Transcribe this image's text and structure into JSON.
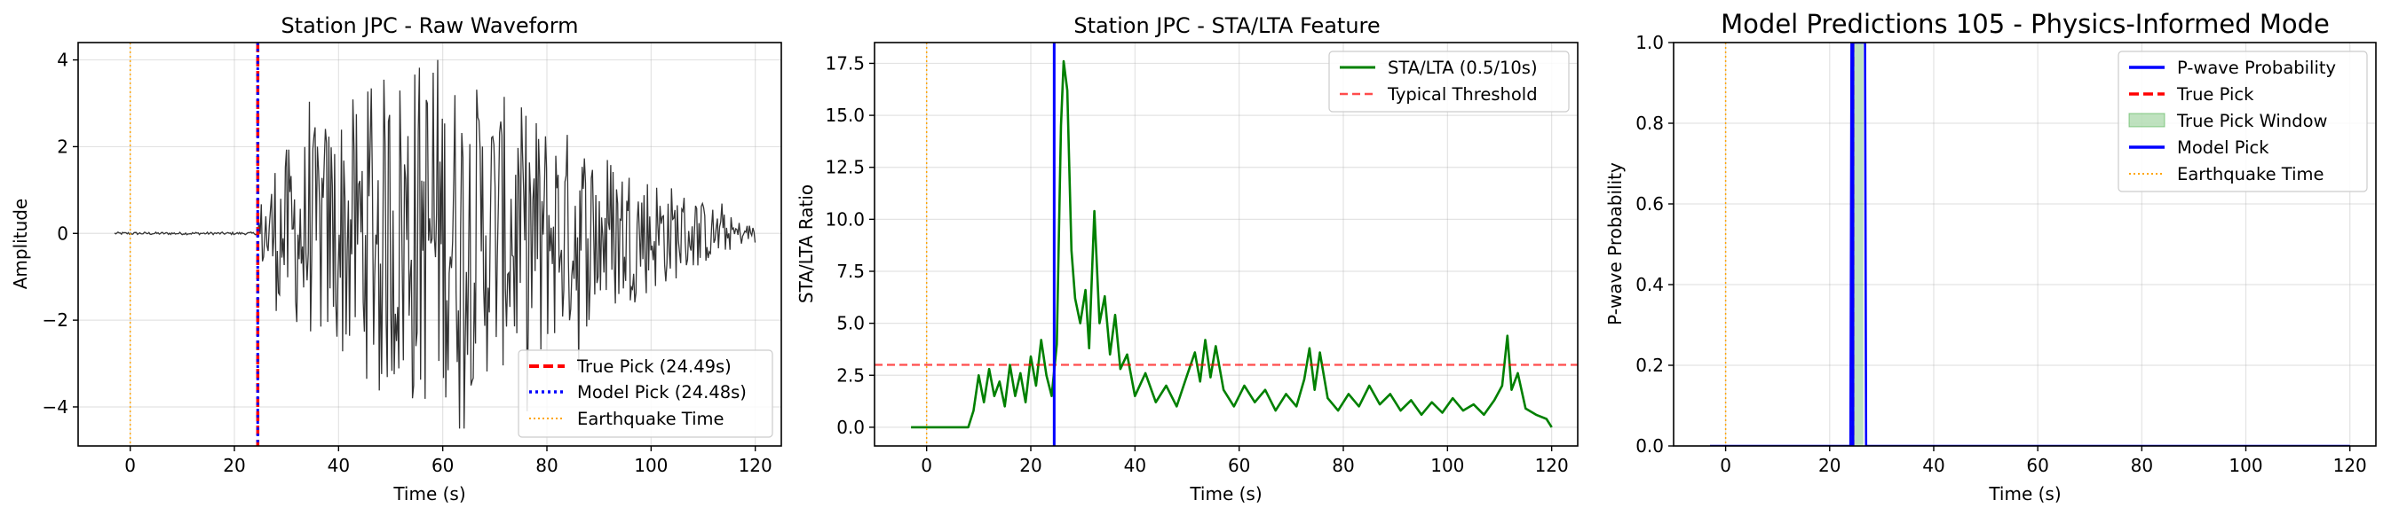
{
  "chart_data": [
    {
      "type": "line",
      "title": "Station JPC - Raw Waveform",
      "xlabel": "Time (s)",
      "ylabel": "Amplitude",
      "xlim": [
        -10,
        125
      ],
      "ylim": [
        -4.9,
        4.4
      ],
      "xticks": [
        "0",
        "20",
        "40",
        "60",
        "80",
        "100",
        "120"
      ],
      "xtick_values": [
        0,
        20,
        40,
        60,
        80,
        100,
        120
      ],
      "yticks": [
        "−4",
        "−2",
        "0",
        "2",
        "4"
      ],
      "ytick_values": [
        -4,
        -2,
        0,
        2,
        4
      ],
      "grid": true,
      "legend_position": "lower-right",
      "waveform": {
        "start": -3,
        "end": 120,
        "pick_time": 24.48,
        "pre_amplitude": 0.03,
        "peak_amplitude": 4.0,
        "min_amplitude": -4.5,
        "color": "#333333"
      },
      "vlines": [
        {
          "name": "True Pick (24.49s)",
          "x": 24.49,
          "color": "#ff0000",
          "style": "dashed",
          "width": 3.5
        },
        {
          "name": "Model Pick (24.48s)",
          "x": 24.48,
          "color": "#0000ff",
          "style": "dotted",
          "width": 3
        },
        {
          "name": "Earthquake Time",
          "x": 0,
          "color": "#ffa500",
          "style": "dotted",
          "width": 1.5
        }
      ],
      "legend": [
        "True Pick (24.49s)",
        "Model Pick (24.48s)",
        "Earthquake Time"
      ]
    },
    {
      "type": "line",
      "title": "Station JPC - STA/LTA Feature",
      "xlabel": "Time (s)",
      "ylabel": "STA/LTA Ratio",
      "xlim": [
        -10,
        125
      ],
      "ylim": [
        -0.9,
        18.5
      ],
      "xticks": [
        "0",
        "20",
        "40",
        "60",
        "80",
        "100",
        "120"
      ],
      "xtick_values": [
        0,
        20,
        40,
        60,
        80,
        100,
        120
      ],
      "yticks": [
        "0.0",
        "2.5",
        "5.0",
        "7.5",
        "10.0",
        "12.5",
        "15.0",
        "17.5"
      ],
      "ytick_values": [
        0,
        2.5,
        5,
        7.5,
        10,
        12.5,
        15,
        17.5
      ],
      "grid": true,
      "legend_position": "top-right",
      "series": [
        {
          "name": "STA/LTA (0.5/10s)",
          "color": "#008000",
          "keypoints": [
            [
              -3,
              0
            ],
            [
              8,
              0
            ],
            [
              9,
              0.8
            ],
            [
              10,
              2.5
            ],
            [
              11,
              1.2
            ],
            [
              12,
              2.8
            ],
            [
              13,
              1.5
            ],
            [
              14,
              2.2
            ],
            [
              15,
              1.0
            ],
            [
              16,
              3.0
            ],
            [
              17,
              1.5
            ],
            [
              18,
              2.6
            ],
            [
              19,
              1.2
            ],
            [
              20,
              3.4
            ],
            [
              21,
              2.0
            ],
            [
              22,
              4.2
            ],
            [
              23,
              2.5
            ],
            [
              24,
              1.5
            ],
            [
              25,
              4.0
            ],
            [
              25.8,
              14.5
            ],
            [
              26.3,
              17.6
            ],
            [
              27,
              16.2
            ],
            [
              27.8,
              8.5
            ],
            [
              28.5,
              6.2
            ],
            [
              29.5,
              5.0
            ],
            [
              30.5,
              6.6
            ],
            [
              31.2,
              3.8
            ],
            [
              32.2,
              10.4
            ],
            [
              33.2,
              5.0
            ],
            [
              34.2,
              6.3
            ],
            [
              35.2,
              3.5
            ],
            [
              36.2,
              5.4
            ],
            [
              37.2,
              2.8
            ],
            [
              38.5,
              3.5
            ],
            [
              40,
              1.5
            ],
            [
              42,
              2.6
            ],
            [
              44,
              1.2
            ],
            [
              46,
              2.0
            ],
            [
              48,
              1.0
            ],
            [
              50,
              2.5
            ],
            [
              51.5,
              3.6
            ],
            [
              52.5,
              2.2
            ],
            [
              53.5,
              4.2
            ],
            [
              54.5,
              2.4
            ],
            [
              55.5,
              3.9
            ],
            [
              57,
              1.8
            ],
            [
              59,
              1.0
            ],
            [
              61,
              2.0
            ],
            [
              63,
              1.2
            ],
            [
              65,
              1.8
            ],
            [
              67,
              0.8
            ],
            [
              69,
              1.6
            ],
            [
              71,
              1.0
            ],
            [
              72.5,
              2.3
            ],
            [
              73.5,
              3.8
            ],
            [
              74.5,
              1.8
            ],
            [
              75.5,
              3.6
            ],
            [
              77,
              1.4
            ],
            [
              79,
              0.8
            ],
            [
              81,
              1.6
            ],
            [
              83,
              1.0
            ],
            [
              85,
              2.0
            ],
            [
              87,
              1.1
            ],
            [
              89,
              1.6
            ],
            [
              91,
              0.8
            ],
            [
              93,
              1.3
            ],
            [
              95,
              0.6
            ],
            [
              97,
              1.2
            ],
            [
              99,
              0.7
            ],
            [
              101,
              1.4
            ],
            [
              103,
              0.8
            ],
            [
              105,
              1.1
            ],
            [
              107,
              0.6
            ],
            [
              109,
              1.3
            ],
            [
              110.5,
              2.0
            ],
            [
              111.5,
              4.4
            ],
            [
              112.3,
              1.8
            ],
            [
              113.5,
              2.6
            ],
            [
              115,
              0.9
            ],
            [
              117,
              0.6
            ],
            [
              119,
              0.4
            ],
            [
              120,
              0.0
            ]
          ]
        }
      ],
      "hlines": [
        {
          "name": "Typical Threshold",
          "y": 3.0,
          "color": "#ff0000",
          "style": "dashed",
          "opacity": 0.7
        }
      ],
      "vlines": [
        {
          "x": 24.49,
          "color": "#0000ff",
          "style": "solid",
          "width": 3
        },
        {
          "x": 0,
          "color": "#ffa500",
          "style": "dotted",
          "width": 1.5
        }
      ],
      "legend": [
        "STA/LTA (0.5/10s)",
        "Typical Threshold"
      ]
    },
    {
      "type": "line",
      "title": "Model Predictions 105 - Physics-Informed Mode",
      "xlabel": "Time (s)",
      "ylabel": "P-wave Probability",
      "xlim": [
        -10,
        125
      ],
      "ylim": [
        0,
        1.0
      ],
      "xticks": [
        "0",
        "20",
        "40",
        "60",
        "80",
        "100",
        "120"
      ],
      "xtick_values": [
        0,
        20,
        40,
        60,
        80,
        100,
        120
      ],
      "yticks": [
        "0.0",
        "0.2",
        "0.4",
        "0.6",
        "0.8",
        "1.0"
      ],
      "ytick_values": [
        0,
        0.2,
        0.4,
        0.6,
        0.8,
        1.0
      ],
      "grid": true,
      "legend_position": "top-right",
      "series": [
        {
          "name": "P-wave Probability",
          "color": "#0000ff",
          "points": [
            [
              -3,
              0
            ],
            [
              24.0,
              0
            ],
            [
              24.2,
              1.0
            ],
            [
              26.8,
              1.0
            ],
            [
              27.0,
              0
            ],
            [
              120,
              0
            ]
          ]
        }
      ],
      "span": {
        "name": "True Pick Window",
        "x0": 24.49,
        "x1": 26.49,
        "color": "#2ca02c",
        "opacity": 0.3
      },
      "vlines": [
        {
          "name": "True Pick",
          "x": 24.49,
          "color": "#ff0000",
          "style": "dashed",
          "width": 3
        },
        {
          "name": "Model Pick",
          "x": 24.48,
          "color": "#0000ff",
          "style": "solid",
          "width": 3
        },
        {
          "name": "Earthquake Time",
          "x": 0,
          "color": "#ffa500",
          "style": "dotted",
          "width": 1.5
        }
      ],
      "legend": [
        "P-wave Probability",
        "True Pick",
        "True Pick Window",
        "Model Pick",
        "Earthquake Time"
      ]
    }
  ]
}
